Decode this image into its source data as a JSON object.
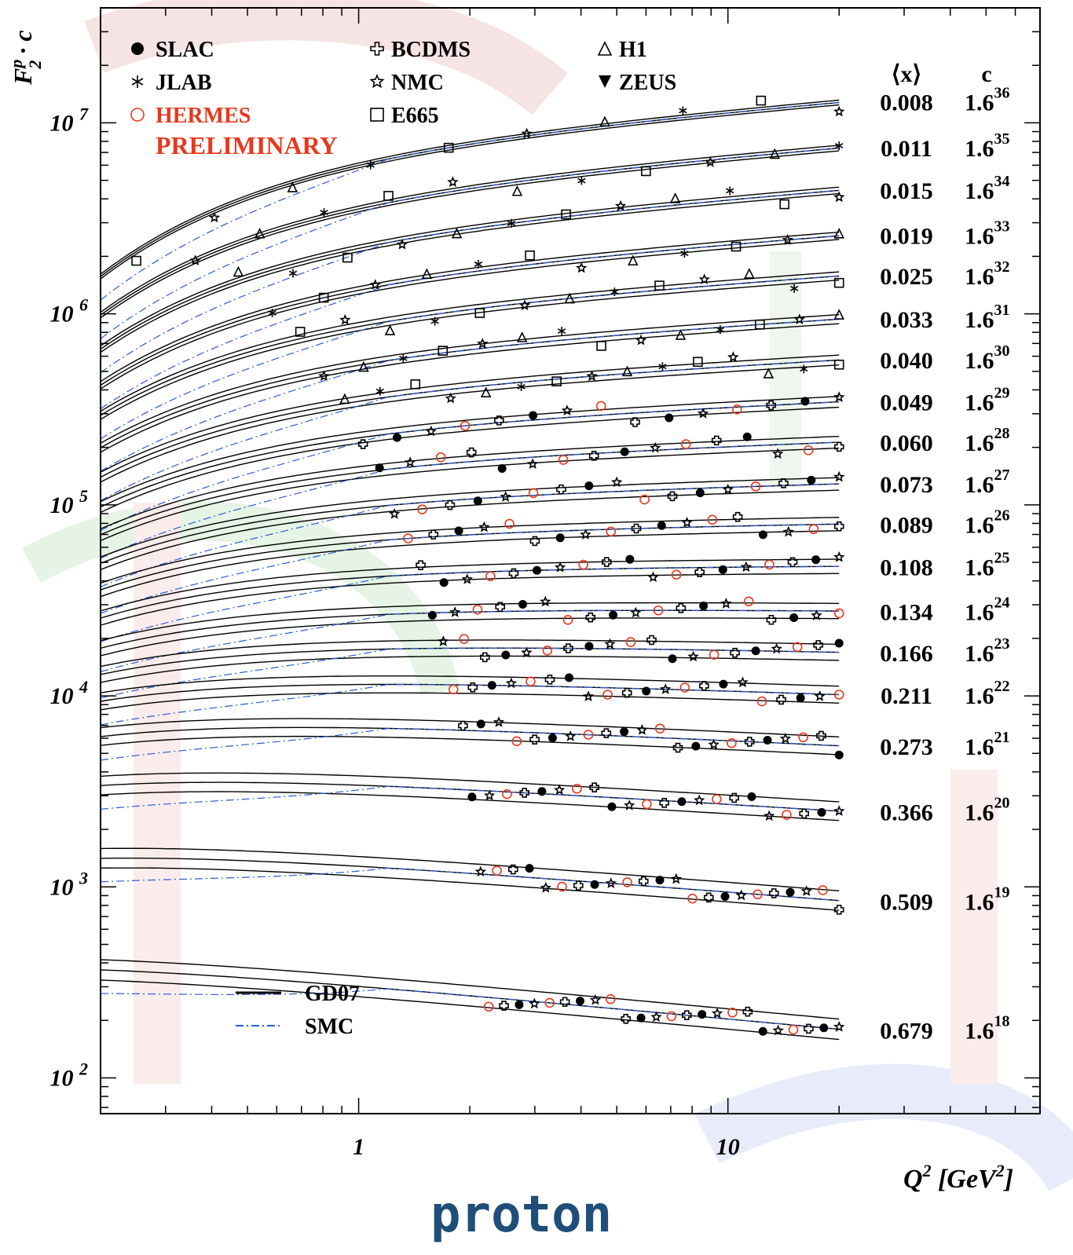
{
  "chart_data": {
    "type": "scatter",
    "ylabel_parts": {
      "base": "F",
      "sub": "2",
      "sup": "p",
      "suffix": "· c"
    },
    "xlabel_parts": {
      "base": "Q",
      "sup": "2",
      "unit": "[GeV",
      "unit_sup": "2",
      "unit_end": "]"
    },
    "x_scale": "log",
    "y_scale": "log",
    "xlim": [
      0.2,
      70
    ],
    "ylim": [
      65,
      40000000
    ],
    "x_ticks": [
      {
        "value": 1,
        "label": "1"
      },
      {
        "value": 10,
        "label": "10"
      }
    ],
    "y_ticks": [
      {
        "value": 100,
        "base": "10",
        "exp": "2"
      },
      {
        "value": 1000,
        "base": "10",
        "exp": "3"
      },
      {
        "value": 10000,
        "base": "10",
        "exp": "4"
      },
      {
        "value": 100000,
        "base": "10",
        "exp": "5"
      },
      {
        "value": 1000000,
        "base": "10",
        "exp": "6"
      },
      {
        "value": 10000000,
        "base": "10",
        "exp": "7"
      }
    ],
    "legend_experiments": [
      {
        "label": "SLAC",
        "marker": "filled-circle",
        "color": "#000000"
      },
      {
        "label": "JLAB",
        "marker": "asterisk",
        "color": "#000000"
      },
      {
        "label": "HERMES",
        "marker": "open-circle",
        "color": "#e8381c"
      },
      {
        "label": "BCDMS",
        "marker": "open-cross",
        "color": "#000000"
      },
      {
        "label": "NMC",
        "marker": "open-star",
        "color": "#000000"
      },
      {
        "label": "E665",
        "marker": "open-square",
        "color": "#000000"
      },
      {
        "label": "H1",
        "marker": "open-triangle",
        "color": "#000000"
      },
      {
        "label": "ZEUS",
        "marker": "filled-triangle-down",
        "color": "#000000"
      }
    ],
    "legend_note": "PRELIMINARY",
    "legend_models": [
      {
        "label": "GD07",
        "style": "solid",
        "color": "#000000"
      },
      {
        "label": "SMC",
        "style": "dash-dot",
        "color": "#2a5bd7"
      }
    ],
    "table_headers": {
      "x": "⟨x⟩",
      "c": "c"
    },
    "bins": [
      {
        "x": "0.008",
        "c_base": "1.6",
        "c_exp": "36",
        "level": 13000000
      },
      {
        "x": "0.011",
        "c_base": "1.6",
        "c_exp": "35",
        "level": 7500000
      },
      {
        "x": "0.015",
        "c_base": "1.6",
        "c_exp": "34",
        "level": 4500000
      },
      {
        "x": "0.019",
        "c_base": "1.6",
        "c_exp": "33",
        "level": 2600000
      },
      {
        "x": "0.025",
        "c_base": "1.6",
        "c_exp": "32",
        "level": 1600000
      },
      {
        "x": "0.033",
        "c_base": "1.6",
        "c_exp": "31",
        "level": 950000
      },
      {
        "x": "0.040",
        "c_base": "1.6",
        "c_exp": "30",
        "level": 580000
      },
      {
        "x": "0.049",
        "c_base": "1.6",
        "c_exp": "29",
        "level": 350000
      },
      {
        "x": "0.060",
        "c_base": "1.6",
        "c_exp": "28",
        "level": 215000
      },
      {
        "x": "0.073",
        "c_base": "1.6",
        "c_exp": "27",
        "level": 130000
      },
      {
        "x": "0.089",
        "c_base": "1.6",
        "c_exp": "26",
        "level": 80000
      },
      {
        "x": "0.108",
        "c_base": "1.6",
        "c_exp": "25",
        "level": 48000
      },
      {
        "x": "0.134",
        "c_base": "1.6",
        "c_exp": "24",
        "level": 28000
      },
      {
        "x": "0.166",
        "c_base": "1.6",
        "c_exp": "23",
        "level": 17000
      },
      {
        "x": "0.211",
        "c_base": "1.6",
        "c_exp": "22",
        "level": 10200
      },
      {
        "x": "0.273",
        "c_base": "1.6",
        "c_exp": "21",
        "level": 5500
      },
      {
        "x": "0.366",
        "c_base": "1.6",
        "c_exp": "20",
        "level": 2500
      },
      {
        "x": "0.509",
        "c_base": "1.6",
        "c_exp": "19",
        "level": 850
      },
      {
        "x": "0.679",
        "c_base": "1.6",
        "c_exp": "18",
        "level": 180
      }
    ],
    "grid": false,
    "legend_position": "top-left"
  },
  "footer": {
    "label": "proton"
  }
}
